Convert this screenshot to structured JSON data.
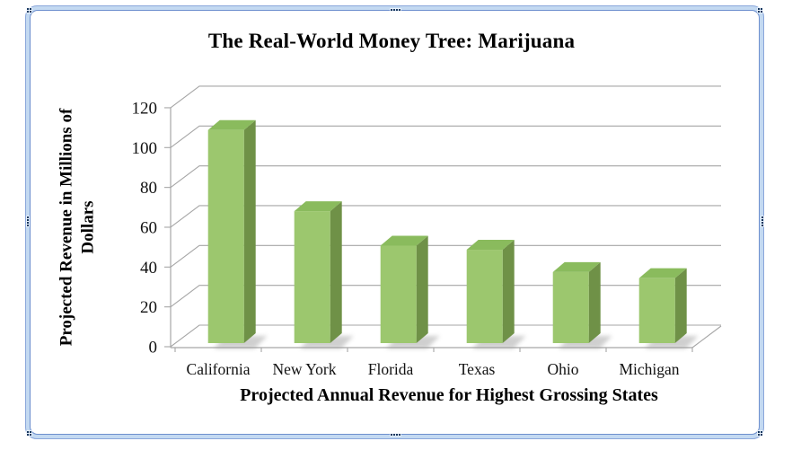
{
  "frame": {
    "type": "selected-object-frame",
    "border_color": "#6D8FCE",
    "band_color": "#C3D9F1",
    "handle_dot_color": "#17375E"
  },
  "chart_data": {
    "type": "bar",
    "style": "3d-column",
    "title": "The Real-World Money Tree: Marijuana",
    "xlabel": "Projected Annual Revenue for Highest Grossing States",
    "ylabel": "Projected Revenue in Millions of Dollars",
    "ylabel_lines": [
      "Projected Revenue in Millions of",
      "Dollars"
    ],
    "categories": [
      "California",
      "New York",
      "Florida",
      "Texas",
      "Ohio",
      "Michigan"
    ],
    "values": [
      105,
      65,
      48,
      46,
      35,
      32
    ],
    "ylim": [
      0,
      120
    ],
    "yticks": [
      0,
      20,
      40,
      60,
      80,
      100,
      120
    ],
    "grid": true,
    "legend": "none",
    "colors": {
      "bar_front": "#9CC76E",
      "bar_top": "#8ABB5D",
      "bar_side": "#6F9147",
      "gridline": "#A6A6A6",
      "axis": "#A6A6A6",
      "text": "#000000"
    }
  }
}
